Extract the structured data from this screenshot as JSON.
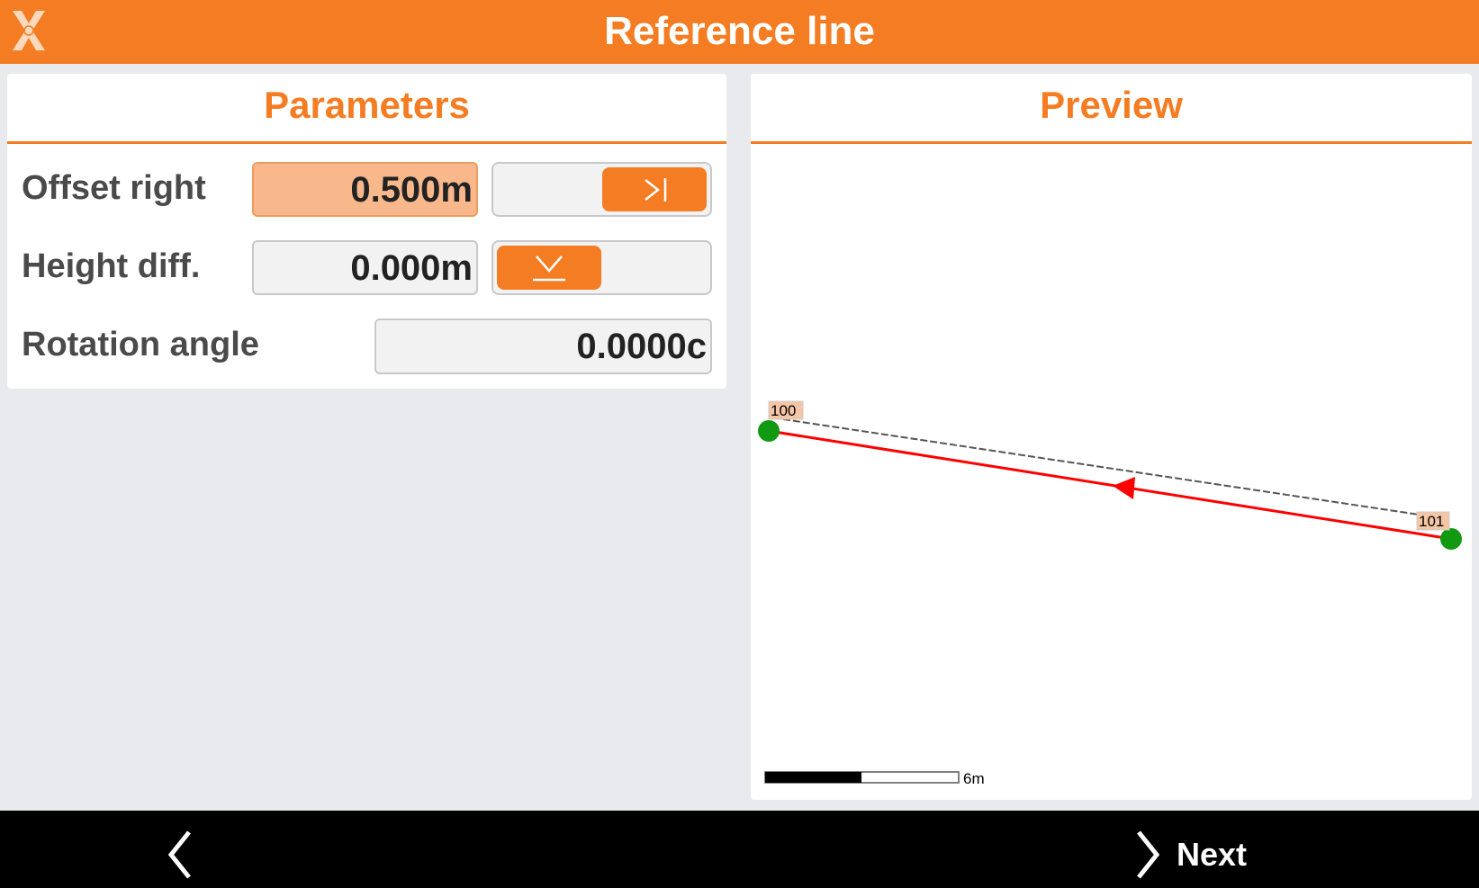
{
  "header": {
    "title": "Reference line",
    "logo_icon": "x-logo-icon"
  },
  "parameters": {
    "title": "Parameters",
    "offset": {
      "label": "Offset right",
      "value": "0.500m",
      "toggle_icon": "offset-right-icon",
      "toggle_state": "right"
    },
    "height": {
      "label": "Height diff.",
      "value": "0.000m",
      "toggle_icon": "height-down-icon",
      "toggle_state": "left"
    },
    "rotation": {
      "label": "Rotation angle",
      "value": "0.0000c"
    }
  },
  "preview": {
    "title": "Preview",
    "points": [
      {
        "label": "100"
      },
      {
        "label": "101"
      }
    ],
    "scale_label": "6m",
    "colors": {
      "reference": "#ff0000",
      "offset": "#555555",
      "point": "#119911",
      "label_bg": "#f5c6a5"
    }
  },
  "footer": {
    "back_icon": "chevron-left-icon",
    "next_label": "Next",
    "next_icon": "chevron-right-icon"
  },
  "colors": {
    "accent": "#f47c22",
    "accent_light": "#f9b88c"
  }
}
